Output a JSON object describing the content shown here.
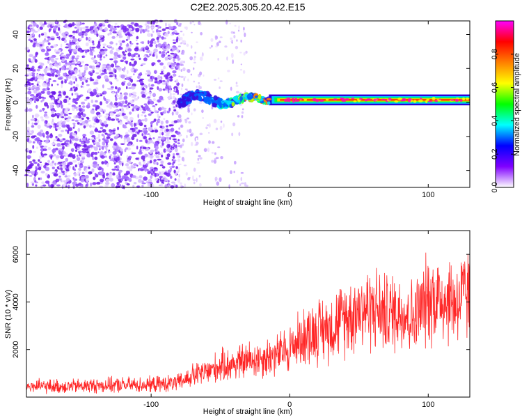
{
  "figure_title": "C2E2.2025.305.20.42.E15",
  "chart_data": [
    {
      "type": "heatmap",
      "title": "C2E2.2025.305.20.42.E15",
      "xlabel": "Height of straight line (km)",
      "ylabel": "Frequency (Hz)",
      "xlim": [
        -190,
        130
      ],
      "ylim": [
        -50,
        48
      ],
      "x_ticks": [
        -100,
        0,
        100
      ],
      "y_ticks": [
        -40,
        -20,
        0,
        20,
        40
      ],
      "colorbar": {
        "label": "Normalized spectral amplitude",
        "range": [
          0.0,
          1.0
        ],
        "ticks": [
          "0.0",
          "0.2",
          "0.4",
          "0.6",
          "0.8"
        ],
        "tick_values": [
          0.0,
          0.2,
          0.4,
          0.6,
          0.8
        ],
        "colors": [
          "#ffffff",
          "#8000ff",
          "#0000ff",
          "#00ffff",
          "#00ff00",
          "#ffff00",
          "#ff8000",
          "#ff0000",
          "#ff00ff"
        ]
      },
      "features": {
        "noise_region_x": [
          -190,
          -80
        ],
        "sparse_noise_x": [
          -80,
          -30
        ],
        "band_center_hz": 1.5,
        "band_start_x": -80
      }
    },
    {
      "type": "line",
      "xlabel": "Height of straight line (km)",
      "ylabel": "SNR (10 * v/v)",
      "xlim": [
        -190,
        130
      ],
      "ylim": [
        0,
        7000
      ],
      "x_ticks": [
        -100,
        0,
        100
      ],
      "y_ticks": [
        2000,
        4000,
        6000
      ],
      "series": [
        {
          "name": "SNR",
          "color": "#ff0000",
          "x": [
            -190,
            -160,
            -130,
            -100,
            -80,
            -70,
            -60,
            -50,
            -40,
            -30,
            -20,
            -10,
            0,
            10,
            20,
            30,
            40,
            50,
            60,
            70,
            80,
            90,
            100,
            110,
            120,
            130
          ],
          "y": [
            450,
            450,
            500,
            520,
            600,
            900,
            1050,
            1300,
            1400,
            1550,
            1650,
            1750,
            2050,
            2550,
            2800,
            2950,
            3350,
            3700,
            3750,
            3500,
            3650,
            3300,
            4150,
            4200,
            4000,
            4350
          ]
        }
      ]
    }
  ]
}
